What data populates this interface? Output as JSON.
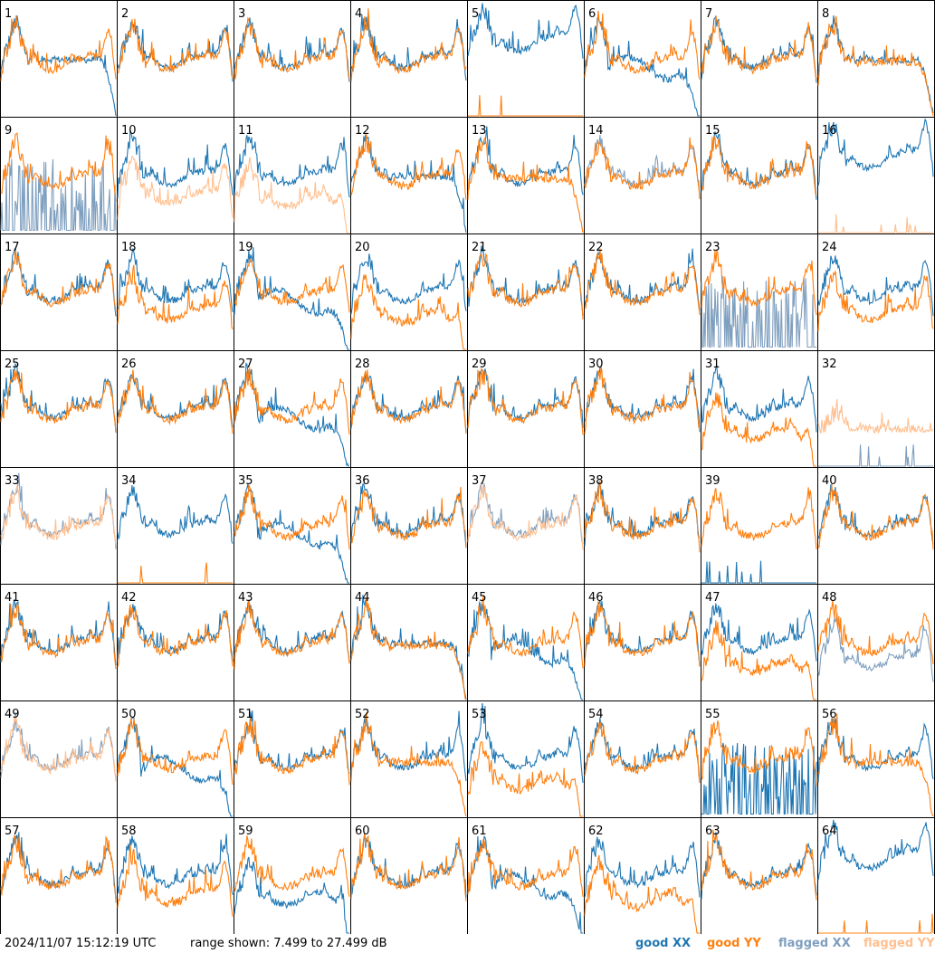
{
  "footer": {
    "timestamp": "2024/11/07 15:12:19 UTC",
    "range_text": "range shown: 7.499 to 27.499 dB",
    "legend": {
      "good_xx": "good XX",
      "good_yy": "good YY",
      "flagged_xx": "flagged XX",
      "flagged_yy": "flagged YY"
    }
  },
  "colors": {
    "good_xx": "#1f77b4",
    "good_yy": "#ff7f0e",
    "flagged_xx": "#7f9fbf",
    "flagged_yy": "#ffbf8f",
    "grid": "#000000"
  },
  "chart_data": {
    "type": "line",
    "grid": "8x8 small multiples",
    "ylim_db": [
      7.499,
      27.499
    ],
    "panel_labels": [
      "1",
      "2",
      "3",
      "4",
      "5",
      "6",
      "7",
      "8",
      "9",
      "10",
      "11",
      "12",
      "13",
      "14",
      "15",
      "16",
      "17",
      "18",
      "19",
      "20",
      "21",
      "22",
      "23",
      "24",
      "25",
      "26",
      "27",
      "28",
      "29",
      "30",
      "31",
      "32",
      "33",
      "34",
      "35",
      "36",
      "37",
      "38",
      "39",
      "40",
      "41",
      "42",
      "43",
      "44",
      "45",
      "46",
      "47",
      "48",
      "49",
      "50",
      "51",
      "52",
      "53",
      "54",
      "55",
      "56",
      "57",
      "58",
      "59",
      "60",
      "61",
      "62",
      "63",
      "64"
    ],
    "panels": [
      {
        "id": 1,
        "xx": "good",
        "yy": "good",
        "xx_shape": "rolloff",
        "yy_shape": "noisy"
      },
      {
        "id": 2,
        "xx": "good",
        "yy": "good",
        "xx_shape": "normal",
        "yy_shape": "normal"
      },
      {
        "id": 3,
        "xx": "good",
        "yy": "good",
        "xx_shape": "normal",
        "yy_shape": "normal"
      },
      {
        "id": 4,
        "xx": "good",
        "yy": "good",
        "xx_shape": "normal",
        "yy_shape": "normal"
      },
      {
        "id": 5,
        "xx": "good",
        "yy": "good",
        "xx_shape": "high",
        "yy_shape": "dead"
      },
      {
        "id": 6,
        "xx": "good",
        "yy": "good",
        "xx_shape": "wavy_rolloff",
        "yy_shape": "normal"
      },
      {
        "id": 7,
        "xx": "good",
        "yy": "good",
        "xx_shape": "normal",
        "yy_shape": "normal"
      },
      {
        "id": 8,
        "xx": "good",
        "yy": "good",
        "xx_shape": "rolloff",
        "yy_shape": "rolloff"
      },
      {
        "id": 9,
        "xx": "flagged",
        "yy": "good",
        "xx_shape": "spiky",
        "yy_shape": "normal"
      },
      {
        "id": 10,
        "xx": "good",
        "yy": "flagged",
        "xx_shape": "normal",
        "yy_shape": "low"
      },
      {
        "id": 11,
        "xx": "good",
        "yy": "flagged",
        "xx_shape": "normal",
        "yy_shape": "low_rolloff"
      },
      {
        "id": 12,
        "xx": "good",
        "yy": "good",
        "xx_shape": "rolloff",
        "yy_shape": "normal"
      },
      {
        "id": 13,
        "xx": "good",
        "yy": "good",
        "xx_shape": "normal",
        "yy_shape": "rolloff"
      },
      {
        "id": 14,
        "xx": "flagged",
        "yy": "good",
        "xx_shape": "normal",
        "yy_shape": "normal"
      },
      {
        "id": 15,
        "xx": "good",
        "yy": "good",
        "xx_shape": "normal",
        "yy_shape": "normal"
      },
      {
        "id": 16,
        "xx": "good",
        "yy": "flagged",
        "xx_shape": "high",
        "yy_shape": "dead"
      },
      {
        "id": 17,
        "xx": "good",
        "yy": "good",
        "xx_shape": "normal",
        "yy_shape": "normal"
      },
      {
        "id": 18,
        "xx": "good",
        "yy": "good",
        "xx_shape": "normal",
        "yy_shape": "low"
      },
      {
        "id": 19,
        "xx": "good",
        "yy": "good",
        "xx_shape": "wavy_rolloff",
        "yy_shape": "normal"
      },
      {
        "id": 20,
        "xx": "good",
        "yy": "good",
        "xx_shape": "normal",
        "yy_shape": "low_rolloff"
      },
      {
        "id": 21,
        "xx": "good",
        "yy": "good",
        "xx_shape": "normal",
        "yy_shape": "normal"
      },
      {
        "id": 22,
        "xx": "good",
        "yy": "good",
        "xx_shape": "normal",
        "yy_shape": "normal"
      },
      {
        "id": 23,
        "xx": "flagged",
        "yy": "good",
        "xx_shape": "spiky",
        "yy_shape": "normal"
      },
      {
        "id": 24,
        "xx": "good",
        "yy": "good",
        "xx_shape": "normal",
        "yy_shape": "low"
      },
      {
        "id": 25,
        "xx": "good",
        "yy": "good",
        "xx_shape": "normal",
        "yy_shape": "normal"
      },
      {
        "id": 26,
        "xx": "good",
        "yy": "good",
        "xx_shape": "normal",
        "yy_shape": "normal"
      },
      {
        "id": 27,
        "xx": "good",
        "yy": "good",
        "xx_shape": "wavy_rolloff",
        "yy_shape": "normal"
      },
      {
        "id": 28,
        "xx": "good",
        "yy": "good",
        "xx_shape": "normal",
        "yy_shape": "normal"
      },
      {
        "id": 29,
        "xx": "good",
        "yy": "good",
        "xx_shape": "normal",
        "yy_shape": "normal"
      },
      {
        "id": 30,
        "xx": "good",
        "yy": "good",
        "xx_shape": "normal",
        "yy_shape": "normal"
      },
      {
        "id": 31,
        "xx": "good",
        "yy": "good",
        "xx_shape": "normal",
        "yy_shape": "low_rolloff"
      },
      {
        "id": 32,
        "xx": "flagged",
        "yy": "flagged",
        "xx_shape": "dead",
        "yy_shape": "spiky_high"
      },
      {
        "id": 33,
        "xx": "flagged",
        "yy": "flagged",
        "xx_shape": "normal",
        "yy_shape": "normal"
      },
      {
        "id": 34,
        "xx": "good",
        "yy": "good",
        "xx_shape": "normal",
        "yy_shape": "dead"
      },
      {
        "id": 35,
        "xx": "good",
        "yy": "good",
        "xx_shape": "wavy_rolloff",
        "yy_shape": "normal"
      },
      {
        "id": 36,
        "xx": "good",
        "yy": "good",
        "xx_shape": "normal",
        "yy_shape": "normal"
      },
      {
        "id": 37,
        "xx": "flagged",
        "yy": "flagged",
        "xx_shape": "normal",
        "yy_shape": "normal"
      },
      {
        "id": 38,
        "xx": "good",
        "yy": "good",
        "xx_shape": "normal",
        "yy_shape": "normal"
      },
      {
        "id": 39,
        "xx": "good",
        "yy": "good",
        "xx_shape": "dead",
        "yy_shape": "normal"
      },
      {
        "id": 40,
        "xx": "good",
        "yy": "good",
        "xx_shape": "normal",
        "yy_shape": "normal"
      },
      {
        "id": 41,
        "xx": "good",
        "yy": "good",
        "xx_shape": "normal",
        "yy_shape": "normal"
      },
      {
        "id": 42,
        "xx": "good",
        "yy": "good",
        "xx_shape": "normal",
        "yy_shape": "normal"
      },
      {
        "id": 43,
        "xx": "good",
        "yy": "good",
        "xx_shape": "normal",
        "yy_shape": "normal"
      },
      {
        "id": 44,
        "xx": "good",
        "yy": "good",
        "xx_shape": "rolloff",
        "yy_shape": "rolloff"
      },
      {
        "id": 45,
        "xx": "good",
        "yy": "good",
        "xx_shape": "wavy_rolloff",
        "yy_shape": "normal"
      },
      {
        "id": 46,
        "xx": "good",
        "yy": "good",
        "xx_shape": "normal",
        "yy_shape": "normal"
      },
      {
        "id": 47,
        "xx": "good",
        "yy": "good",
        "xx_shape": "normal",
        "yy_shape": "low_rolloff"
      },
      {
        "id": 48,
        "xx": "flagged",
        "yy": "good",
        "xx_shape": "low",
        "yy_shape": "normal"
      },
      {
        "id": 49,
        "xx": "flagged",
        "yy": "flagged",
        "xx_shape": "normal",
        "yy_shape": "normal"
      },
      {
        "id": 50,
        "xx": "good",
        "yy": "good",
        "xx_shape": "wavy_rolloff",
        "yy_shape": "normal"
      },
      {
        "id": 51,
        "xx": "good",
        "yy": "good",
        "xx_shape": "normal",
        "yy_shape": "normal"
      },
      {
        "id": 52,
        "xx": "good",
        "yy": "good",
        "xx_shape": "normal",
        "yy_shape": "rolloff"
      },
      {
        "id": 53,
        "xx": "good",
        "yy": "good",
        "xx_shape": "normal",
        "yy_shape": "low_rolloff"
      },
      {
        "id": 54,
        "xx": "good",
        "yy": "good",
        "xx_shape": "normal",
        "yy_shape": "normal"
      },
      {
        "id": 55,
        "xx": "good",
        "yy": "good",
        "xx_shape": "spiky",
        "yy_shape": "normal"
      },
      {
        "id": 56,
        "xx": "good",
        "yy": "good",
        "xx_shape": "normal",
        "yy_shape": "rolloff"
      },
      {
        "id": 57,
        "xx": "good",
        "yy": "good",
        "xx_shape": "normal",
        "yy_shape": "normal"
      },
      {
        "id": 58,
        "xx": "good",
        "yy": "good",
        "xx_shape": "normal",
        "yy_shape": "low"
      },
      {
        "id": 59,
        "xx": "good",
        "yy": "good",
        "xx_shape": "low_rolloff",
        "yy_shape": "normal"
      },
      {
        "id": 60,
        "xx": "good",
        "yy": "good",
        "xx_shape": "normal",
        "yy_shape": "normal"
      },
      {
        "id": 61,
        "xx": "good",
        "yy": "good",
        "xx_shape": "wavy_rolloff",
        "yy_shape": "normal"
      },
      {
        "id": 62,
        "xx": "good",
        "yy": "good",
        "xx_shape": "normal",
        "yy_shape": "low_rolloff"
      },
      {
        "id": 63,
        "xx": "good",
        "yy": "good",
        "xx_shape": "normal",
        "yy_shape": "normal"
      },
      {
        "id": 64,
        "xx": "good",
        "yy": "good",
        "xx_shape": "high",
        "yy_shape": "dead"
      }
    ]
  }
}
